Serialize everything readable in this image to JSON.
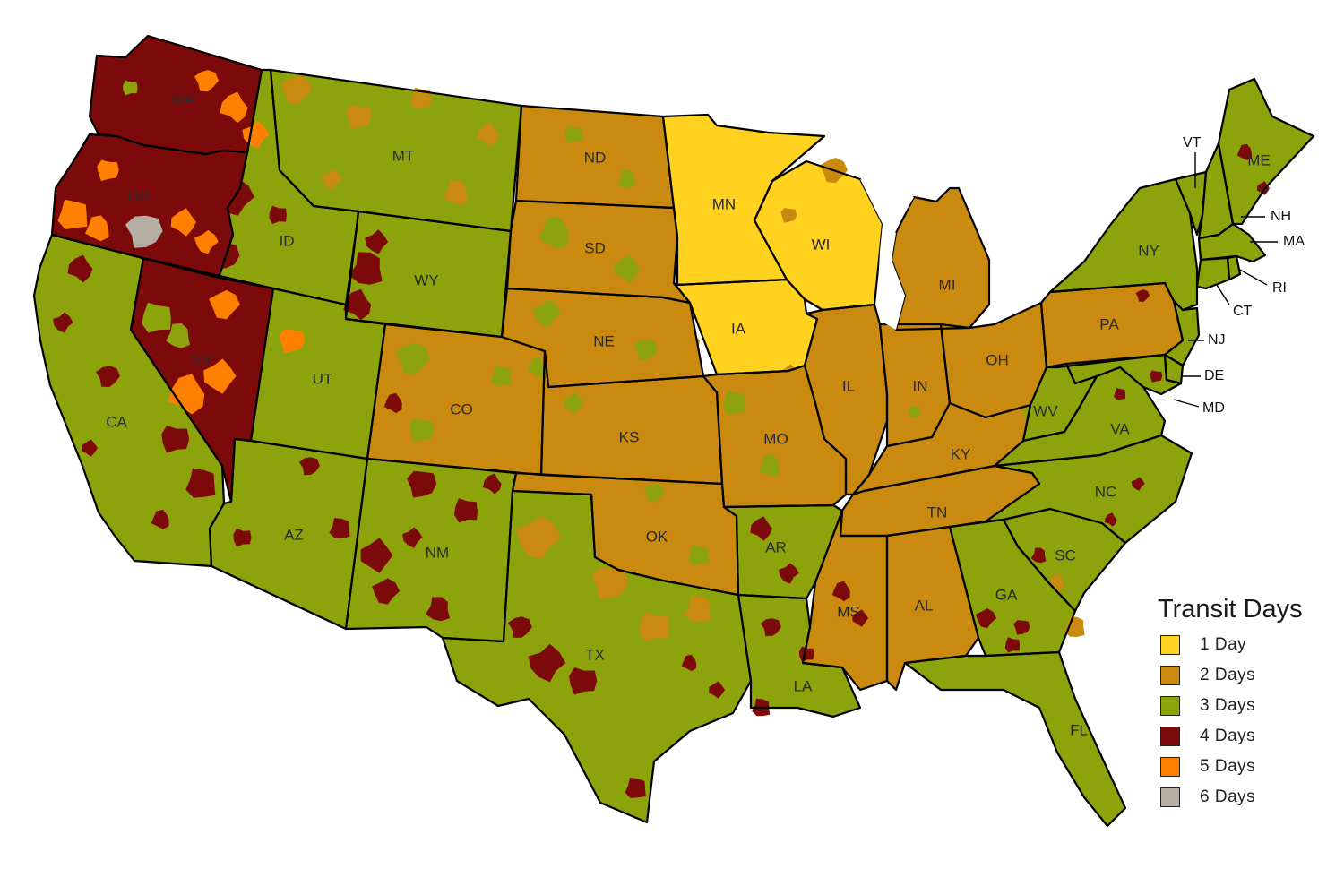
{
  "colors": {
    "one_day": "#ffd21f",
    "two_days": "#c98a0f",
    "three_days": "#8ca30c",
    "four_days": "#7d0a0a",
    "five_days": "#ff8000",
    "six_days": "#b5aea3",
    "border": "#000000",
    "background": "#ffffff"
  },
  "legend": {
    "title": "Transit Days",
    "items": [
      {
        "label": "1 Day",
        "color": "#ffd21f"
      },
      {
        "label": "2 Days",
        "color": "#c98a0f"
      },
      {
        "label": "3 Days",
        "color": "#8ca30c"
      },
      {
        "label": "4 Days",
        "color": "#7d0a0a"
      },
      {
        "label": "5 Days",
        "color": "#ff8000"
      },
      {
        "label": "6 Days",
        "color": "#b5aea3"
      }
    ]
  },
  "states": [
    {
      "abbr": "WA",
      "transit_days": 4
    },
    {
      "abbr": "OR",
      "transit_days": 4
    },
    {
      "abbr": "CA",
      "transit_days": 3
    },
    {
      "abbr": "NV",
      "transit_days": 4
    },
    {
      "abbr": "ID",
      "transit_days": 3
    },
    {
      "abbr": "MT",
      "transit_days": 3
    },
    {
      "abbr": "WY",
      "transit_days": 3
    },
    {
      "abbr": "UT",
      "transit_days": 3
    },
    {
      "abbr": "AZ",
      "transit_days": 3
    },
    {
      "abbr": "CO",
      "transit_days": 2
    },
    {
      "abbr": "NM",
      "transit_days": 3
    },
    {
      "abbr": "ND",
      "transit_days": 2
    },
    {
      "abbr": "SD",
      "transit_days": 2
    },
    {
      "abbr": "NE",
      "transit_days": 2
    },
    {
      "abbr": "KS",
      "transit_days": 2
    },
    {
      "abbr": "OK",
      "transit_days": 2
    },
    {
      "abbr": "TX",
      "transit_days": 3
    },
    {
      "abbr": "MN",
      "transit_days": 1
    },
    {
      "abbr": "IA",
      "transit_days": 1
    },
    {
      "abbr": "WI",
      "transit_days": 1
    },
    {
      "abbr": "MO",
      "transit_days": 2
    },
    {
      "abbr": "AR",
      "transit_days": 3
    },
    {
      "abbr": "LA",
      "transit_days": 3
    },
    {
      "abbr": "IL",
      "transit_days": 2
    },
    {
      "abbr": "MI",
      "transit_days": 2
    },
    {
      "abbr": "IN",
      "transit_days": 2
    },
    {
      "abbr": "OH",
      "transit_days": 2
    },
    {
      "abbr": "KY",
      "transit_days": 2
    },
    {
      "abbr": "TN",
      "transit_days": 2
    },
    {
      "abbr": "MS",
      "transit_days": 2
    },
    {
      "abbr": "AL",
      "transit_days": 2
    },
    {
      "abbr": "GA",
      "transit_days": 3
    },
    {
      "abbr": "FL",
      "transit_days": 3
    },
    {
      "abbr": "SC",
      "transit_days": 3
    },
    {
      "abbr": "NC",
      "transit_days": 3
    },
    {
      "abbr": "VA",
      "transit_days": 3
    },
    {
      "abbr": "WV",
      "transit_days": 3
    },
    {
      "abbr": "PA",
      "transit_days": 2
    },
    {
      "abbr": "NY",
      "transit_days": 3
    },
    {
      "abbr": "VT",
      "transit_days": 3
    },
    {
      "abbr": "ME",
      "transit_days": 3
    },
    {
      "abbr": "NH",
      "transit_days": 3
    },
    {
      "abbr": "MA",
      "transit_days": 3
    },
    {
      "abbr": "RI",
      "transit_days": 3
    },
    {
      "abbr": "CT",
      "transit_days": 3
    },
    {
      "abbr": "NJ",
      "transit_days": 3
    },
    {
      "abbr": "DE",
      "transit_days": 3
    },
    {
      "abbr": "MD",
      "transit_days": 3
    }
  ]
}
